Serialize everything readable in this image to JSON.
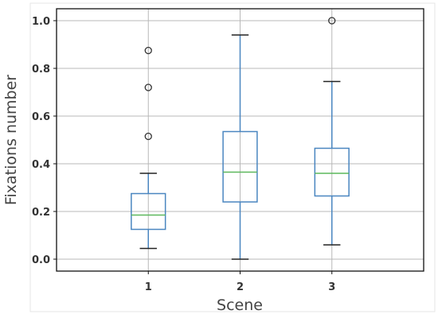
{
  "chart_data": {
    "type": "box",
    "title": "",
    "xlabel": "Scene",
    "ylabel": "Fixations number",
    "categories": [
      "1",
      "2",
      "3"
    ],
    "ylim": [
      -0.05,
      1.05
    ],
    "yticks": [
      0.0,
      0.2,
      0.4,
      0.6,
      0.8,
      1.0
    ],
    "ytick_labels": [
      "0.0",
      "0.2",
      "0.4",
      "0.6",
      "0.8",
      "1.0"
    ],
    "grid": true,
    "boxes": [
      {
        "category": "1",
        "whisker_low": 0.045,
        "q1": 0.125,
        "median": 0.185,
        "q3": 0.275,
        "whisker_high": 0.36,
        "outliers": [
          0.515,
          0.72,
          0.875
        ]
      },
      {
        "category": "2",
        "whisker_low": 0.0,
        "q1": 0.24,
        "median": 0.365,
        "q3": 0.535,
        "whisker_high": 0.94,
        "outliers": []
      },
      {
        "category": "3",
        "whisker_low": 0.06,
        "q1": 0.265,
        "median": 0.36,
        "q3": 0.465,
        "whisker_high": 0.745,
        "outliers": [
          1.0
        ]
      }
    ],
    "colors": {
      "box": "#4a86c0",
      "median": "#5cb85c",
      "whisker_cap": "#222222",
      "grid": "#b8b8b8",
      "outlier": "#333333"
    }
  }
}
